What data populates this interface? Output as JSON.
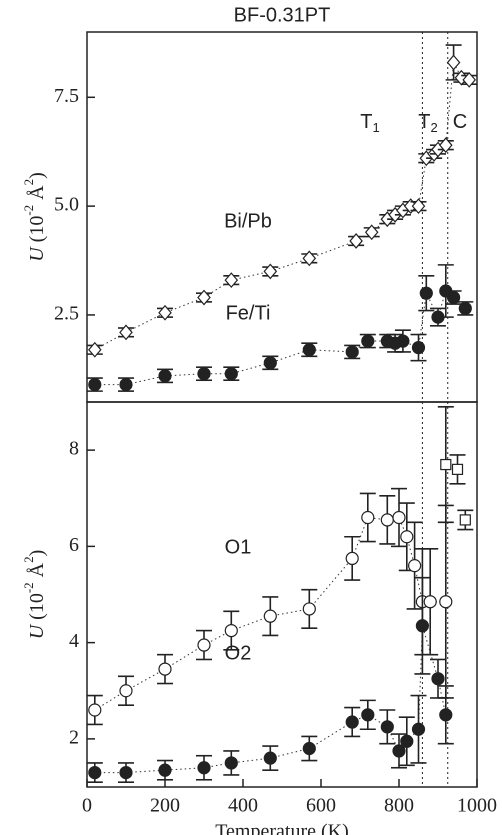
{
  "chart_data": [
    {
      "type": "scatter",
      "title": "BF-0.31PT",
      "ylabel": [
        "U",
        " (10",
        "-2",
        " Å",
        "2",
        ")"
      ],
      "xlim": [
        0,
        1000
      ],
      "ylim": [
        0.5,
        9.0
      ],
      "yticks": [
        2.5,
        {
          "value": 5,
          "label": "5.0"
        },
        7.5
      ],
      "vlines": [
        860,
        925
      ],
      "annotations": [
        {
          "text": "T",
          "sub": "1"
        },
        {
          "text": "T",
          "sub": "2"
        },
        {
          "text": "C"
        }
      ],
      "series": [
        {
          "name": "Bi/Pb",
          "marker": "diamond",
          "filled": false,
          "color": "#222222",
          "x": [
            20,
            100,
            200,
            300,
            370,
            470,
            570,
            690,
            730,
            770,
            790,
            810,
            830,
            850,
            870,
            890,
            900,
            920,
            940,
            960,
            980
          ],
          "values": [
            1.7,
            2.1,
            2.55,
            2.9,
            3.3,
            3.5,
            3.8,
            4.2,
            4.4,
            4.7,
            4.8,
            4.9,
            5.0,
            5.0,
            6.1,
            6.2,
            6.3,
            6.4,
            8.3,
            7.95,
            7.9
          ],
          "errors": [
            0.1,
            0.1,
            0.1,
            0.1,
            0.1,
            0.1,
            0.1,
            0.1,
            0.1,
            0.1,
            0.1,
            0.1,
            0.1,
            0.1,
            0.1,
            0.1,
            0.1,
            0.1,
            0.4,
            0.1,
            0.1
          ]
        },
        {
          "name": "Fe/Ti",
          "marker": "circle",
          "filled": true,
          "color": "#222222",
          "x": [
            20,
            100,
            200,
            300,
            370,
            470,
            570,
            680,
            720,
            770,
            790,
            810,
            850,
            870,
            900,
            920,
            940,
            970
          ],
          "values": [
            0.9,
            0.9,
            1.1,
            1.15,
            1.15,
            1.4,
            1.7,
            1.65,
            1.9,
            1.9,
            1.85,
            1.9,
            1.75,
            3.0,
            2.45,
            3.05,
            2.9,
            2.65
          ],
          "errors": [
            0.15,
            0.15,
            0.15,
            0.15,
            0.15,
            0.15,
            0.15,
            0.15,
            0.15,
            0.15,
            0.2,
            0.25,
            0.3,
            0.4,
            0.2,
            0.6,
            0.15,
            0.15
          ]
        }
      ]
    },
    {
      "type": "scatter",
      "ylabel": [
        "U",
        " (10",
        "-2",
        " Å",
        "2",
        ")"
      ],
      "xlabel": "Temperature (K)",
      "xlim": [
        0,
        1000
      ],
      "ylim": [
        1.0,
        9.0
      ],
      "xticks": [
        0,
        200,
        400,
        600,
        800,
        1000
      ],
      "yticks": [
        2,
        4,
        6,
        8
      ],
      "vlines": [
        860,
        925
      ],
      "series": [
        {
          "name": "O1",
          "marker": "circle",
          "filled": false,
          "color": "#222222",
          "x": [
            20,
            100,
            200,
            300,
            370,
            470,
            570,
            680,
            720,
            770,
            800,
            820,
            840,
            860,
            880,
            920
          ],
          "values": [
            2.6,
            3.0,
            3.45,
            3.95,
            4.25,
            4.55,
            4.7,
            5.75,
            6.6,
            6.55,
            6.6,
            6.2,
            5.6,
            4.85,
            4.85,
            4.85
          ],
          "errors": [
            0.3,
            0.3,
            0.3,
            0.3,
            0.4,
            0.4,
            0.4,
            0.45,
            0.5,
            0.5,
            0.6,
            0.7,
            0.9,
            1.1,
            1.1,
            2.0
          ]
        },
        {
          "marker": "square",
          "filled": false,
          "color": "#222222",
          "x": [
            920,
            950,
            970
          ],
          "values": [
            7.7,
            7.6,
            6.55
          ],
          "errors": [
            1.2,
            0.3,
            0.2
          ]
        },
        {
          "name": "O2",
          "marker": "circle",
          "filled": true,
          "color": "#222222",
          "x": [
            20,
            100,
            200,
            300,
            370,
            470,
            570,
            680,
            720,
            770,
            800,
            820,
            850,
            860,
            900,
            920
          ],
          "values": [
            1.3,
            1.3,
            1.35,
            1.4,
            1.5,
            1.6,
            1.8,
            2.35,
            2.5,
            2.25,
            1.75,
            1.95,
            2.2,
            4.35,
            3.25,
            2.5
          ],
          "errors": [
            0.2,
            0.2,
            0.2,
            0.25,
            0.25,
            0.25,
            0.25,
            0.3,
            0.3,
            0.35,
            0.35,
            0.5,
            0.7,
            1.0,
            0.4,
            0.6
          ]
        }
      ]
    }
  ]
}
